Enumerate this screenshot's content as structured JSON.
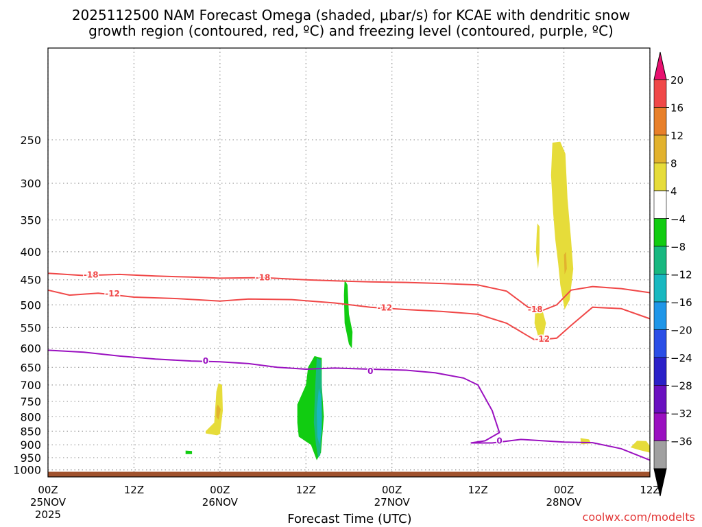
{
  "chart_data": {
    "type": "heatmap",
    "title_line1": "2025112500 NAM Forecast Omega (shaded, μbar/s) for KCAE with dendritic snow",
    "title_line2": "growth region (contoured, red, ºC) and freezing level (contoured, purple, ºC)",
    "xlabel": "Forecast Time (UTC)",
    "credit": "coolwx.com/modelts",
    "x_range_hours": [
      0,
      84
    ],
    "y_range_hPa": [
      1030,
      170
    ],
    "y_ticks": [
      250,
      300,
      350,
      400,
      450,
      500,
      550,
      600,
      650,
      700,
      750,
      800,
      850,
      900,
      950,
      1000
    ],
    "x_ticks": [
      {
        "hour": 0,
        "label": "00Z",
        "date": "25NOV",
        "year": "2025"
      },
      {
        "hour": 12,
        "label": "12Z",
        "date": "",
        "year": ""
      },
      {
        "hour": 24,
        "label": "00Z",
        "date": "26NOV",
        "year": ""
      },
      {
        "hour": 36,
        "label": "12Z",
        "date": "",
        "year": ""
      },
      {
        "hour": 48,
        "label": "00Z",
        "date": "27NOV",
        "year": ""
      },
      {
        "hour": 60,
        "label": "12Z",
        "date": "",
        "year": ""
      },
      {
        "hour": 72,
        "label": "00Z",
        "date": "28NOV",
        "year": ""
      },
      {
        "hour": 84,
        "label": "12Z",
        "date": "",
        "year": ""
      }
    ],
    "grid": true,
    "colorbar": {
      "labels": [
        "20",
        "16",
        "12",
        "8",
        "4",
        "−4",
        "−8",
        "−12",
        "−16",
        "−20",
        "−24",
        "−28",
        "−32",
        "−36"
      ],
      "colors": [
        "#e8106f",
        "#f04848",
        "#e8802a",
        "#e2b22e",
        "#e6dc3a",
        "#ffffff",
        "#11cc11",
        "#18b880",
        "#18b8c0",
        "#1f96e8",
        "#2a4ee6",
        "#2a20c8",
        "#6a10c0",
        "#9a10c0",
        "#a0a0a0",
        "#000000"
      ]
    },
    "contours": [
      {
        "name": "-18",
        "color": "#f04848",
        "points": [
          [
            0,
            438
          ],
          [
            5,
            442
          ],
          [
            10,
            440
          ],
          [
            15,
            443
          ],
          [
            20,
            445
          ],
          [
            24,
            447
          ],
          [
            30,
            446
          ],
          [
            36,
            450
          ],
          [
            40,
            452
          ],
          [
            45,
            454
          ],
          [
            50,
            455
          ],
          [
            55,
            457
          ],
          [
            60,
            460
          ],
          [
            64,
            472
          ],
          [
            67,
            505
          ],
          [
            69,
            512
          ],
          [
            71,
            500
          ],
          [
            73,
            470
          ],
          [
            76,
            463
          ],
          [
            80,
            467
          ],
          [
            84,
            475
          ]
        ],
        "labels": [
          [
            6,
            441
          ],
          [
            30,
            446
          ],
          [
            68,
            510
          ]
        ]
      },
      {
        "name": "-12",
        "color": "#f04848",
        "points": [
          [
            0,
            470
          ],
          [
            3,
            480
          ],
          [
            7,
            476
          ],
          [
            12,
            484
          ],
          [
            18,
            487
          ],
          [
            24,
            492
          ],
          [
            28,
            488
          ],
          [
            34,
            489
          ],
          [
            40,
            496
          ],
          [
            45,
            505
          ],
          [
            50,
            510
          ],
          [
            55,
            514
          ],
          [
            60,
            520
          ],
          [
            64,
            540
          ],
          [
            67,
            570
          ],
          [
            68,
            580
          ],
          [
            71,
            575
          ],
          [
            73,
            545
          ],
          [
            76,
            505
          ],
          [
            80,
            508
          ],
          [
            84,
            530
          ]
        ],
        "labels": [
          [
            9,
            477
          ],
          [
            47,
            506
          ],
          [
            69,
            577
          ]
        ]
      },
      {
        "name": "0",
        "color": "#9a10c0",
        "points": [
          [
            0,
            605
          ],
          [
            5,
            610
          ],
          [
            10,
            620
          ],
          [
            15,
            628
          ],
          [
            20,
            633
          ],
          [
            24,
            635
          ],
          [
            28,
            640
          ],
          [
            32,
            650
          ],
          [
            36,
            655
          ],
          [
            40,
            652
          ],
          [
            45,
            655
          ],
          [
            50,
            658
          ],
          [
            54,
            665
          ],
          [
            58,
            680
          ],
          [
            60,
            700
          ],
          [
            62,
            780
          ],
          [
            63,
            855
          ],
          [
            61,
            885
          ],
          [
            59,
            893
          ],
          [
            62,
            893
          ],
          [
            66,
            880
          ],
          [
            72,
            890
          ],
          [
            76,
            892
          ],
          [
            80,
            915
          ],
          [
            84,
            960
          ]
        ],
        "labels": [
          [
            22,
            633
          ],
          [
            45,
            661
          ],
          [
            63,
            885
          ]
        ]
      }
    ],
    "shaded_regions": [
      {
        "level": "4 to 8",
        "color": "#e6dc3a",
        "points": [
          [
            23.8,
            695
          ],
          [
            24.3,
            700
          ],
          [
            24.4,
            780
          ],
          [
            24,
            860
          ],
          [
            23.6,
            865
          ],
          [
            22,
            858
          ],
          [
            22,
            850
          ],
          [
            23.2,
            820
          ],
          [
            23.5,
            720
          ]
        ]
      },
      {
        "level": "8 to 12",
        "color": "#e2b22e",
        "points": [
          [
            23.7,
            760
          ],
          [
            24.1,
            775
          ],
          [
            23.8,
            810
          ],
          [
            23.5,
            800
          ],
          [
            23.5,
            770
          ]
        ]
      },
      {
        "level": "-4 to -8",
        "color": "#11cc11",
        "points": [
          [
            37.2,
            620
          ],
          [
            38.2,
            625
          ],
          [
            38.2,
            700
          ],
          [
            38.5,
            800
          ],
          [
            38.1,
            930
          ],
          [
            37.5,
            960
          ],
          [
            36.7,
            900
          ],
          [
            35,
            870
          ],
          [
            34.8,
            820
          ],
          [
            34.8,
            760
          ],
          [
            36,
            700
          ],
          [
            36.3,
            650
          ]
        ]
      },
      {
        "level": "-8 to -12",
        "color": "#18b880",
        "points": [
          [
            37.5,
            625
          ],
          [
            38.1,
            630
          ],
          [
            38.2,
            700
          ],
          [
            38.3,
            800
          ],
          [
            38.0,
            940
          ],
          [
            37.7,
            950
          ],
          [
            37.4,
            900
          ],
          [
            37.1,
            820
          ],
          [
            37.3,
            700
          ]
        ]
      },
      {
        "level": "-12 to -16",
        "color": "#18b8c0",
        "points": [
          [
            37.8,
            710
          ],
          [
            38.1,
            730
          ],
          [
            38.2,
            850
          ],
          [
            37.9,
            900
          ],
          [
            37.6,
            870
          ],
          [
            37.5,
            780
          ]
        ]
      },
      {
        "level": "-4 to -8",
        "color": "#11cc11",
        "points": [
          [
            41.4,
            450
          ],
          [
            41.8,
            460
          ],
          [
            42.0,
            520
          ],
          [
            42.5,
            560
          ],
          [
            42.4,
            600
          ],
          [
            42,
            590
          ],
          [
            41.4,
            540
          ],
          [
            41.3,
            480
          ]
        ]
      },
      {
        "level": "-4 to -8",
        "color": "#11cc11",
        "points": [
          [
            19.2,
            922
          ],
          [
            20.1,
            924
          ],
          [
            20.1,
            936
          ],
          [
            19.2,
            936
          ]
        ]
      },
      {
        "level": "4 to 8",
        "color": "#e6dc3a",
        "points": [
          [
            70.4,
            253
          ],
          [
            71.5,
            252
          ],
          [
            72.2,
            265
          ],
          [
            72.5,
            320
          ],
          [
            73.0,
            380
          ],
          [
            73.3,
            430
          ],
          [
            72.8,
            490
          ],
          [
            72.1,
            510
          ],
          [
            71.5,
            460
          ],
          [
            71.2,
            420
          ],
          [
            70.8,
            380
          ],
          [
            70.5,
            340
          ],
          [
            70.2,
            290
          ]
        ]
      },
      {
        "level": "8 to 12",
        "color": "#e2b22e",
        "points": [
          [
            72.0,
            405
          ],
          [
            72.3,
            400
          ],
          [
            72.4,
            430
          ],
          [
            72.1,
            440
          ]
        ]
      },
      {
        "level": "4 to 8",
        "color": "#e6dc3a",
        "points": [
          [
            68.3,
            355
          ],
          [
            68.6,
            360
          ],
          [
            68.6,
            400
          ],
          [
            68.4,
            430
          ],
          [
            68.1,
            400
          ],
          [
            68.2,
            370
          ]
        ]
      },
      {
        "level": "4 to 8",
        "color": "#e6dc3a",
        "points": [
          [
            68.0,
            510
          ],
          [
            68.8,
            500
          ],
          [
            69.5,
            540
          ],
          [
            69,
            580
          ],
          [
            68.4,
            570
          ],
          [
            67.9,
            540
          ]
        ]
      },
      {
        "level": "4 to 8",
        "color": "#e6dc3a",
        "points": [
          [
            74.3,
            875
          ],
          [
            75.5,
            880
          ],
          [
            75.8,
            895
          ],
          [
            74.4,
            898
          ]
        ]
      },
      {
        "level": "4 to 8",
        "color": "#e6dc3a",
        "points": [
          [
            82.2,
            885
          ],
          [
            83.5,
            886
          ],
          [
            84,
            905
          ],
          [
            84,
            930
          ],
          [
            82.5,
            920
          ],
          [
            81.3,
            910
          ]
        ]
      }
    ],
    "surface": {
      "color": "#a0522d",
      "pressure_hPa": 1008
    }
  }
}
